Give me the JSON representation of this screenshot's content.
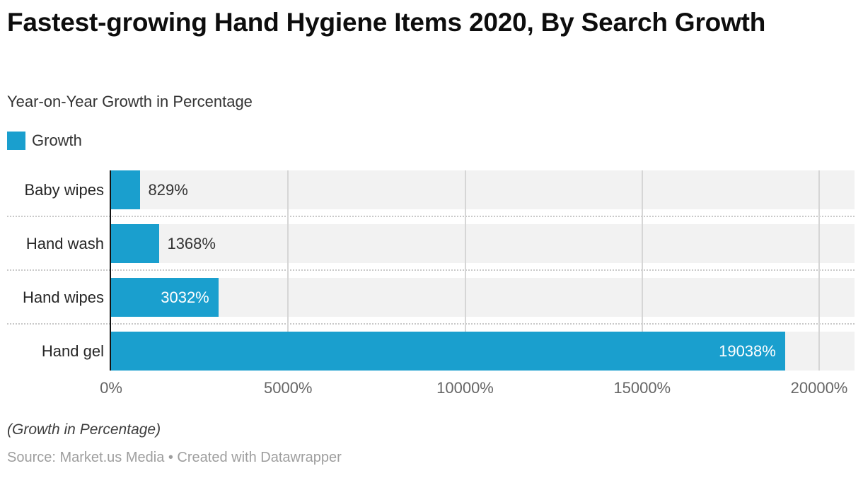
{
  "header": {
    "title": "Fastest-growing Hand Hygiene Items 2020, By Search Growth",
    "subtitle": "Year-on-Year Growth in Percentage"
  },
  "legend": {
    "items": [
      {
        "label": "Growth",
        "color": "#1a9fce"
      }
    ]
  },
  "chart_data": {
    "type": "bar",
    "orientation": "horizontal",
    "title": "Fastest-growing Hand Hygiene Items 2020, By Search Growth",
    "subtitle": "Year-on-Year Growth in Percentage",
    "categories": [
      "Baby wipes",
      "Hand wash",
      "Hand wipes",
      "Hand gel"
    ],
    "series": [
      {
        "name": "Growth",
        "values": [
          829,
          1368,
          3032,
          19038
        ]
      }
    ],
    "value_labels": [
      "829%",
      "1368%",
      "3032%",
      "19038%"
    ],
    "xlim": [
      0,
      20000
    ],
    "x_ticks": [
      0,
      5000,
      10000,
      15000,
      20000
    ],
    "x_tick_labels": [
      "0%",
      "5000%",
      "10000%",
      "15000%",
      "20000%"
    ],
    "grid": true,
    "legend_position": "top-left",
    "bar_color": "#1a9fce",
    "track_color": "#f2f2f2"
  },
  "footer": {
    "note": "(Growth in Percentage)",
    "source": "Source: Market.us Media • Created with Datawrapper"
  }
}
